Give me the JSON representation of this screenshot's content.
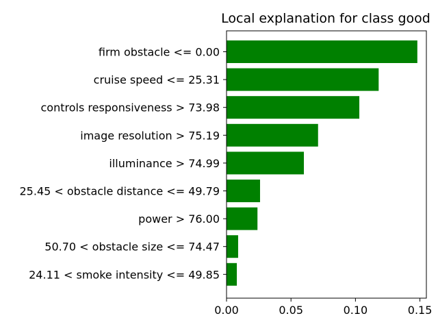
{
  "chart_data": {
    "type": "bar",
    "orientation": "horizontal",
    "title": "Local explanation for class good",
    "xlabel": "",
    "ylabel": "",
    "categories": [
      "firm obstacle <= 0.00",
      "cruise speed <= 25.31",
      "controls responsiveness > 73.98",
      "image resolution > 75.19",
      "illuminance > 74.99",
      "25.45 < obstacle distance <= 49.79",
      "power > 76.00",
      "50.70 < obstacle size <= 74.47",
      "24.11 < smoke intensity <= 49.85"
    ],
    "values": [
      0.148,
      0.118,
      0.103,
      0.071,
      0.06,
      0.026,
      0.024,
      0.009,
      0.008
    ],
    "xlim": [
      0,
      0.155
    ],
    "xticks": [
      0.0,
      0.05,
      0.1,
      0.15
    ],
    "xtick_labels": [
      "0.00",
      "0.05",
      "0.10",
      "0.15"
    ],
    "bar_color": "#008000",
    "grid": false,
    "legend": "none"
  }
}
